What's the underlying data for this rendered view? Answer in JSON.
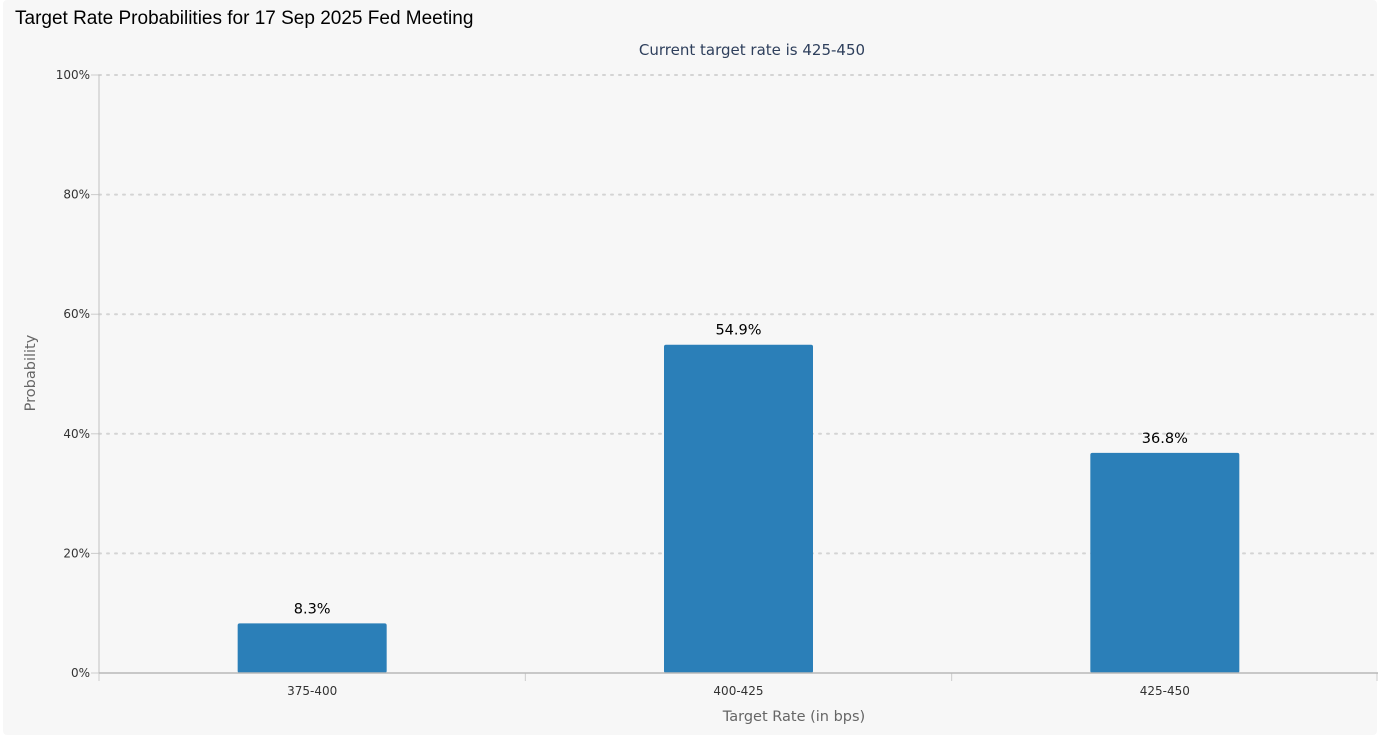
{
  "header": {
    "title": "Target Rate Probabilities for 17 Sep 2025 Fed Meeting"
  },
  "chart_data": {
    "type": "bar",
    "title": "Target Rate Probabilities for 17 Sep 2025 Fed Meeting",
    "subtitle": "Current target rate is 425-450",
    "categories": [
      "375-400",
      "400-425",
      "425-450"
    ],
    "values": [
      8.3,
      54.9,
      36.8
    ],
    "data_labels": [
      "8.3%",
      "54.9%",
      "36.8%"
    ],
    "xlabel": "Target Rate (in bps)",
    "ylabel": "Probability",
    "ylim": [
      0,
      100
    ],
    "yticks": [
      0,
      20,
      40,
      60,
      80,
      100
    ],
    "ytick_labels": [
      "0%",
      "20%",
      "40%",
      "60%",
      "80%",
      "100%"
    ],
    "grid": true,
    "bar_color": "#2b7fb8"
  }
}
